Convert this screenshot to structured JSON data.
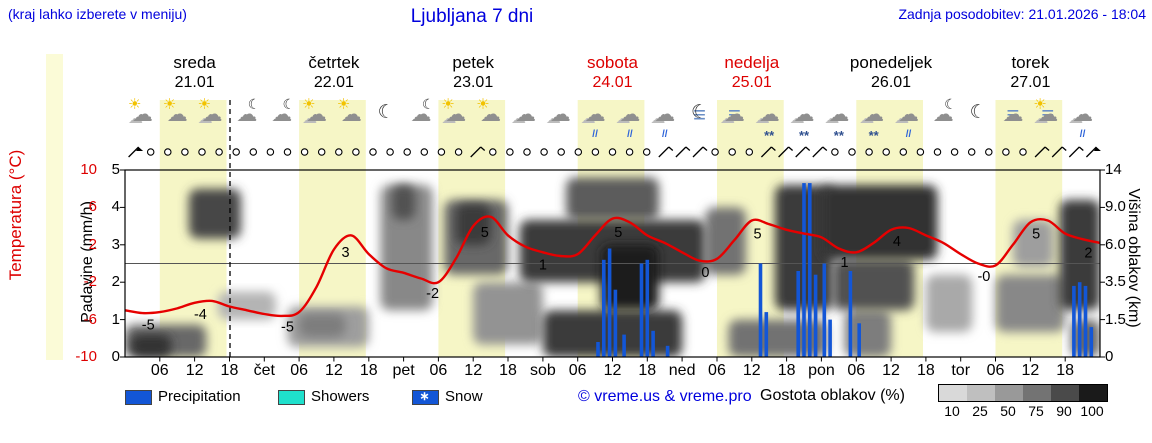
{
  "header": {
    "note": "(kraj lahko izberete v meniju)",
    "title": "Ljubljana 7 dni",
    "updated": "Zadnja posodobitev: 21.01.2026 - 18:04"
  },
  "axes": {
    "temp_label": "Temperatura (°C)",
    "temp_ticks": [
      10,
      6,
      2,
      -2,
      -6,
      -10
    ],
    "precip_label": "Padavine (mm/h)",
    "precip_ticks": [
      5,
      4,
      3,
      2,
      1,
      0
    ],
    "cloud_label": "Višina oblakov (km)",
    "cloud_ticks": [
      "14",
      "9.0",
      "6.0",
      "3.5",
      "1.5",
      "0"
    ]
  },
  "days": [
    {
      "name": "sreda",
      "date": "21.01",
      "weekend": false
    },
    {
      "name": "četrtek",
      "date": "22.01",
      "weekend": false
    },
    {
      "name": "petek",
      "date": "23.01",
      "weekend": false
    },
    {
      "name": "sobota",
      "date": "24.01",
      "weekend": true
    },
    {
      "name": "nedelja",
      "date": "25.01",
      "weekend": true
    },
    {
      "name": "ponedeljek",
      "date": "26.01",
      "weekend": false
    },
    {
      "name": "torek",
      "date": "27.01",
      "weekend": false
    }
  ],
  "legend": {
    "precipitation": "Precipitation",
    "showers": "Showers",
    "snow": "Snow",
    "snow_star": "∗",
    "copyright": "© vreme.us & vreme.pro",
    "cloud_density": "Gostota oblakov (%)",
    "density_ticks": [
      "10",
      "25",
      "50",
      "75",
      "90",
      "100"
    ],
    "density_colors": [
      "#d9d9d9",
      "#bfbfbf",
      "#999999",
      "#737373",
      "#4a4a4a",
      "#1a1a1a"
    ]
  },
  "colors": {
    "accent_blue": "#0000dd",
    "red": "#dd0000",
    "temp_line": "#e60000",
    "precip_bar": "#1356d6",
    "showers": "#1fe0cc",
    "yellow_band": "#f6f6c6"
  },
  "chart_data": {
    "type": "meteogram-composite",
    "hours_total": 168,
    "x_step_hours": 3,
    "temperature_c": [
      -5.0,
      -5.3,
      -5.2,
      -4.8,
      -4.2,
      -4.0,
      -4.6,
      -5.0,
      -5.4,
      -5.6,
      -5.2,
      -2.5,
      1.5,
      3.0,
      1.0,
      -0.5,
      -1.0,
      -1.6,
      -2.0,
      0.5,
      4.0,
      5.0,
      3.0,
      1.8,
      1.2,
      0.8,
      1.0,
      3.0,
      4.8,
      4.4,
      3.0,
      2.2,
      1.2,
      0.3,
      0.5,
      2.5,
      4.6,
      4.2,
      3.6,
      3.2,
      2.8,
      1.6,
      1.2,
      2.2,
      3.6,
      3.8,
      3.0,
      2.2,
      1.0,
      0.0,
      -0.2,
      2.0,
      4.4,
      4.6,
      3.2,
      2.6,
      2.2
    ],
    "temp_point_labels": [
      {
        "h": 4,
        "text": "-5"
      },
      {
        "h": 13,
        "text": "-4"
      },
      {
        "h": 28,
        "text": "-5"
      },
      {
        "h": 38,
        "text": "3"
      },
      {
        "h": 53,
        "text": "-2"
      },
      {
        "h": 62,
        "text": "5"
      },
      {
        "h": 72,
        "text": "1"
      },
      {
        "h": 85,
        "text": "5"
      },
      {
        "h": 100,
        "text": "0"
      },
      {
        "h": 109,
        "text": "5"
      },
      {
        "h": 124,
        "text": "1"
      },
      {
        "h": 133,
        "text": "4"
      },
      {
        "h": 148,
        "text": "-0"
      },
      {
        "h": 157,
        "text": "5"
      },
      {
        "h": 166,
        "text": "2"
      }
    ],
    "precipitation_mm_h": [
      [
        81.5,
        0.4
      ],
      [
        82.5,
        2.6
      ],
      [
        83.5,
        2.9
      ],
      [
        84.5,
        1.8
      ],
      [
        86,
        0.6
      ],
      [
        89,
        2.5
      ],
      [
        90,
        2.6
      ],
      [
        91,
        0.7
      ],
      [
        93.5,
        0.3
      ],
      [
        109.5,
        2.5
      ],
      [
        110.5,
        1.2
      ],
      [
        116,
        2.3
      ],
      [
        117,
        4.65
      ],
      [
        118,
        4.65
      ],
      [
        119,
        2.2
      ],
      [
        120.5,
        2.5
      ],
      [
        121.5,
        1.0
      ],
      [
        125,
        2.3
      ],
      [
        126.5,
        0.9
      ],
      [
        163.5,
        1.9
      ],
      [
        164.5,
        2.0
      ],
      [
        165.5,
        1.9
      ],
      [
        166.5,
        0.8
      ]
    ],
    "precip_axis_range": [
      0,
      5
    ],
    "temp_axis_range": [
      -10,
      10
    ],
    "cloud_km_levels": [
      0,
      1.5,
      3.5,
      6,
      9,
      14
    ],
    "daylight_bands": [
      [
        6,
        17.5
      ],
      [
        30,
        41.5
      ],
      [
        54,
        65.5
      ],
      [
        78,
        89.5
      ],
      [
        102,
        113.5
      ],
      [
        126,
        137.5
      ],
      [
        150,
        161.5
      ]
    ],
    "now_line_h": 18.1,
    "zero_line_c": 0,
    "cloud_blobs": [
      [
        0,
        14,
        0,
        1.3,
        60
      ],
      [
        1,
        8,
        0,
        0.9,
        85
      ],
      [
        11,
        20,
        6.5,
        11.5,
        75
      ],
      [
        16,
        26,
        1.5,
        3,
        25
      ],
      [
        28,
        42,
        0.4,
        2.2,
        35
      ],
      [
        30,
        38,
        0.8,
        1.8,
        50
      ],
      [
        44,
        53,
        2,
        12,
        45
      ],
      [
        46,
        50,
        8,
        12,
        70
      ],
      [
        55,
        66,
        4,
        10,
        60
      ],
      [
        57,
        63,
        6,
        9.5,
        80
      ],
      [
        60,
        72,
        0.5,
        3.5,
        40
      ],
      [
        68,
        100,
        3.5,
        8,
        80
      ],
      [
        72,
        96,
        0,
        2,
        80
      ],
      [
        76,
        92,
        8,
        13,
        65
      ],
      [
        82,
        92,
        2,
        6,
        95
      ],
      [
        100,
        107,
        4,
        9,
        55
      ],
      [
        104,
        121,
        0,
        1.5,
        55
      ],
      [
        112,
        122,
        2,
        12,
        80
      ],
      [
        120,
        140,
        5,
        12,
        85
      ],
      [
        122,
        136,
        2,
        5,
        70
      ],
      [
        124,
        132,
        0,
        2,
        50
      ],
      [
        138,
        146,
        1,
        4,
        30
      ],
      [
        150,
        162,
        1,
        4,
        45
      ],
      [
        153,
        160,
        4.5,
        8,
        35
      ],
      [
        161,
        168,
        2,
        10,
        80
      ],
      [
        163,
        168,
        0,
        1.5,
        60
      ]
    ],
    "icons": [
      {
        "sun": 1,
        "cloud": 2
      },
      {
        "sun": 1,
        "cloud": 1
      },
      {
        "sun": 1,
        "cloud": 2
      },
      {
        "moon": 1,
        "cloud": 1
      },
      {
        "moon": 1,
        "cloud": 1
      },
      {
        "sun": 1,
        "cloud": 2
      },
      {
        "sun": 1,
        "cloud": 1
      },
      {
        "moon": 1
      },
      {
        "moon": 1,
        "cloud": 1
      },
      {
        "sun": 1,
        "cloud": 2
      },
      {
        "sun": 1,
        "cloud": 1
      },
      {
        "cloud": 2
      },
      {
        "cloud": 2
      },
      {
        "cloud": 2,
        "rain": 1
      },
      {
        "cloud": 2,
        "rain": 1
      },
      {
        "cloud": 2,
        "rain": 1
      },
      {
        "moon": 1,
        "fog": 1
      },
      {
        "cloud": 2,
        "fog": 1
      },
      {
        "cloud": 2,
        "snow": 1
      },
      {
        "cloud": 2,
        "snow": 1
      },
      {
        "cloud": 2,
        "snow": 1
      },
      {
        "cloud": 2,
        "snow": 1
      },
      {
        "cloud": 2,
        "rain": 1
      },
      {
        "moon": 1,
        "cloud": 1
      },
      {
        "moon": 1
      },
      {
        "fog": 1,
        "cloud": 1
      },
      {
        "sun": 1,
        "cloud": 2,
        "fog": 1
      },
      {
        "cloud": 2,
        "rain": 1
      }
    ],
    "wind": "FooooooooooooooooooowoooooooooowwwooowwwwoooooooooooowwwF",
    "time_axis": [
      {
        "h": 6,
        "t": "06"
      },
      {
        "h": 12,
        "t": "12"
      },
      {
        "h": 18,
        "t": "18"
      },
      {
        "h": 24,
        "t": "čet"
      },
      {
        "h": 30,
        "t": "06"
      },
      {
        "h": 36,
        "t": "12"
      },
      {
        "h": 42,
        "t": "18"
      },
      {
        "h": 48,
        "t": "pet"
      },
      {
        "h": 54,
        "t": "06"
      },
      {
        "h": 60,
        "t": "12"
      },
      {
        "h": 66,
        "t": "18"
      },
      {
        "h": 72,
        "t": "sob"
      },
      {
        "h": 78,
        "t": "06"
      },
      {
        "h": 84,
        "t": "12"
      },
      {
        "h": 90,
        "t": "18"
      },
      {
        "h": 96,
        "t": "ned"
      },
      {
        "h": 102,
        "t": "06"
      },
      {
        "h": 108,
        "t": "12"
      },
      {
        "h": 114,
        "t": "18"
      },
      {
        "h": 120,
        "t": "pon"
      },
      {
        "h": 126,
        "t": "06"
      },
      {
        "h": 132,
        "t": "12"
      },
      {
        "h": 138,
        "t": "18"
      },
      {
        "h": 144,
        "t": "tor"
      },
      {
        "h": 150,
        "t": "06"
      },
      {
        "h": 156,
        "t": "12"
      },
      {
        "h": 162,
        "t": "18"
      }
    ]
  }
}
